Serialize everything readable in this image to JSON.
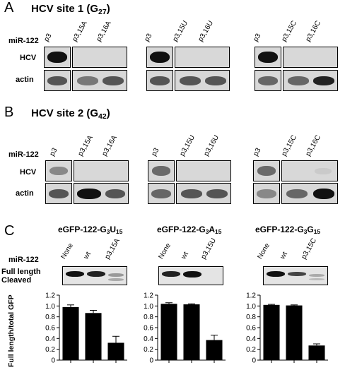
{
  "panel_a": {
    "letter": "A",
    "title": "HCV site 1 (G27)",
    "row_labels": {
      "mir": "miR-122",
      "hcv": "HCV",
      "actin": "actin"
    },
    "groups": [
      {
        "lanes": [
          "p3",
          "p3,15A",
          "p3,16A"
        ]
      },
      {
        "lanes": [
          "p3",
          "p3,15U",
          "p3,16U"
        ]
      },
      {
        "lanes": [
          "p3",
          "p3,15C",
          "p3,16C"
        ]
      }
    ]
  },
  "panel_b": {
    "letter": "B",
    "title": "HCV site 2 (G42)",
    "row_labels": {
      "mir": "miR-122",
      "hcv": "HCV",
      "actin": "actin"
    },
    "groups": [
      {
        "lanes": [
          "p3",
          "p3,15A",
          "p3,16A"
        ]
      },
      {
        "lanes": [
          "p3",
          "p3,15U",
          "p3,16U"
        ]
      },
      {
        "lanes": [
          "p3",
          "p3,15C",
          "p3,16C"
        ]
      }
    ]
  },
  "panel_c": {
    "letter": "C",
    "row_labels": {
      "mir": "miR-122",
      "full": "Full length",
      "cleaved": "Cleaved"
    },
    "ylabel": "Full length/total GFP",
    "subpanels": [
      {
        "title": "eGFP-122-G3U15",
        "lanes": [
          "None",
          "wt",
          "p3,15A"
        ]
      },
      {
        "title": "eGFP-122-G3A15",
        "lanes": [
          "None",
          "wt",
          "p3,15U"
        ]
      },
      {
        "title": "eGFP-122-G3G15",
        "lanes": [
          "None",
          "wt",
          "p3,15C"
        ]
      }
    ]
  },
  "chart_data": [
    {
      "type": "bar",
      "categories": [
        "None",
        "wt",
        "p3,15A"
      ],
      "values": [
        0.98,
        0.87,
        0.32
      ],
      "errors": [
        0.04,
        0.05,
        0.12
      ],
      "ylabel": "Full length/total GFP",
      "ylim": [
        0,
        1.2
      ],
      "yticks": [
        "0",
        "0.2",
        "0.4",
        "0.6",
        "0.8",
        "1.0",
        "1.2"
      ]
    },
    {
      "type": "bar",
      "categories": [
        "None",
        "wt",
        "p3,15U"
      ],
      "values": [
        1.04,
        1.03,
        0.37
      ],
      "errors": [
        0.02,
        0.01,
        0.09
      ],
      "ylim": [
        0,
        1.2
      ],
      "yticks": [
        "0",
        "0.2",
        "0.4",
        "0.6",
        "0.8",
        "1.0",
        "1.2"
      ]
    },
    {
      "type": "bar",
      "categories": [
        "None",
        "wt",
        "p3,15C"
      ],
      "values": [
        1.02,
        1.01,
        0.27
      ],
      "errors": [
        0.01,
        0.01,
        0.03
      ],
      "ylim": [
        0,
        1.2
      ],
      "yticks": [
        "0",
        "0.2",
        "0.4",
        "0.6",
        "0.8",
        "1.0",
        "1.2"
      ]
    }
  ]
}
